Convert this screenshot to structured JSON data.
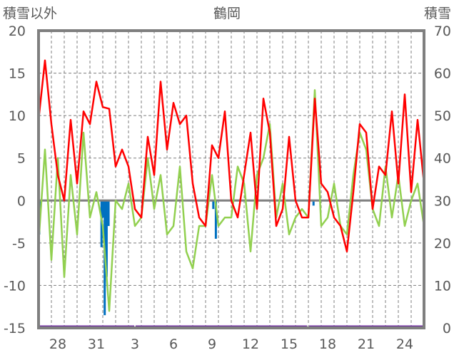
{
  "chart_data": {
    "type": "line",
    "title": "鶴岡",
    "ylabel_left": "積雪以外",
    "ylabel_right": "積雪",
    "ylim_left": [
      -15,
      20
    ],
    "ylim_right": [
      0,
      70
    ],
    "yticks_left": [
      "20",
      "15",
      "10",
      "5",
      "0",
      "-5",
      "-10",
      "-15"
    ],
    "yticks_right": [
      "70",
      "60",
      "50",
      "40",
      "30",
      "20",
      "10",
      "0"
    ],
    "x_range_days": [
      0,
      30
    ],
    "xtick_labels": [
      {
        "day": 1.5,
        "label": "28"
      },
      {
        "day": 4.5,
        "label": "31"
      },
      {
        "day": 7.5,
        "label": "3"
      },
      {
        "day": 10.5,
        "label": "6"
      },
      {
        "day": 13.5,
        "label": "9"
      },
      {
        "day": 16.5,
        "label": "12"
      },
      {
        "day": 19.5,
        "label": "15"
      },
      {
        "day": 22.5,
        "label": "18"
      },
      {
        "day": 25.5,
        "label": "21"
      },
      {
        "day": 28.5,
        "label": "24"
      }
    ],
    "grid": "dashed",
    "series": [
      {
        "name": "red",
        "color": "#ff0000",
        "axis": "left",
        "step_days": 0.5,
        "values": [
          9.5,
          16.5,
          9,
          3,
          0,
          9.5,
          2,
          10.5,
          9,
          14,
          11,
          10.8,
          4,
          6,
          4,
          -1,
          -2,
          7.5,
          3,
          14,
          6,
          11.5,
          9,
          10,
          2,
          -2,
          -3,
          6.5,
          5,
          10.5,
          0,
          -2,
          3,
          8,
          -1,
          12,
          8,
          -3,
          -1,
          7.5,
          0,
          -2,
          -2,
          12,
          2,
          1,
          -2,
          -3,
          -6,
          1,
          9,
          8,
          -1,
          4,
          3,
          10.5,
          2,
          12.5,
          1,
          9.5,
          2
        ]
      },
      {
        "name": "green",
        "color": "#92d050",
        "axis": "left",
        "step_days": 0.5,
        "values": [
          -5,
          6,
          -7,
          5,
          -9,
          3,
          -4,
          8,
          -2,
          1,
          -3,
          -13,
          0,
          -1,
          2,
          -3,
          -2,
          5,
          -1,
          3,
          -4,
          -3,
          4,
          -6,
          -8,
          -3,
          -3,
          3,
          -3,
          -2,
          -2,
          4,
          2,
          -6,
          3,
          5,
          9,
          -2,
          2,
          -4,
          -2,
          -1,
          -2,
          13,
          -3,
          -2,
          2,
          -3,
          -4,
          3,
          8,
          6,
          -1,
          -3,
          4,
          -2,
          3,
          -3,
          0,
          2,
          -3
        ]
      },
      {
        "name": "blue",
        "color": "#0070c0",
        "axis": "left",
        "type": "bar",
        "points": [
          [
            0.05,
            -4
          ],
          [
            0.15,
            -1
          ],
          [
            4.9,
            -5.5
          ],
          [
            5.0,
            -2
          ],
          [
            5.15,
            -13.5
          ],
          [
            5.3,
            -9
          ],
          [
            5.45,
            -3
          ],
          [
            13.6,
            -1
          ],
          [
            13.8,
            -4.5
          ],
          [
            21.4,
            -0.6
          ]
        ]
      },
      {
        "name": "snow",
        "color": "#7030a0",
        "axis": "right",
        "segments": [
          [
            0,
            7.45
          ],
          [
            7.55,
            20.9
          ],
          [
            21.05,
            30
          ]
        ],
        "value": 0
      }
    ]
  }
}
